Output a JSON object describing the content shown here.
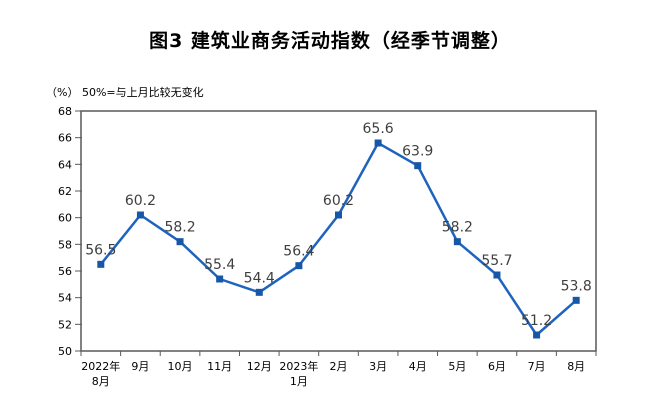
{
  "chart_data": {
    "type": "line",
    "title": "图3  建筑业商务活动指数（经季节调整）",
    "note": "（%） 50%=与上月比较无变化",
    "series_name": "建筑业商务活动指数",
    "categories": [
      [
        "2022年",
        "8月"
      ],
      [
        "9月"
      ],
      [
        "10月"
      ],
      [
        "11月"
      ],
      [
        "12月"
      ],
      [
        "2023年",
        "1月"
      ],
      [
        "2月"
      ],
      [
        "3月"
      ],
      [
        "4月"
      ],
      [
        "5月"
      ],
      [
        "6月"
      ],
      [
        "7月"
      ],
      [
        "8月"
      ]
    ],
    "values": [
      56.5,
      60.2,
      58.2,
      55.4,
      54.4,
      56.4,
      60.2,
      65.6,
      63.9,
      58.2,
      55.7,
      51.2,
      53.8
    ],
    "data_labels": [
      "56.5",
      "60.2",
      "58.2",
      "55.4",
      "54.4",
      "56.4",
      "60.2",
      "65.6",
      "63.9",
      "58.2",
      "55.7",
      "51.2",
      "53.8"
    ],
    "ylim": [
      50,
      68
    ],
    "yticks": [
      50,
      52,
      54,
      56,
      58,
      60,
      62,
      64,
      66,
      68
    ],
    "grid": false,
    "legend": false,
    "marker": "square",
    "colors": {
      "line": "#1E63BE",
      "marker": "#1757A8",
      "data_label": "#3F3F3F",
      "axis": "#595959",
      "text": "#000000"
    }
  }
}
